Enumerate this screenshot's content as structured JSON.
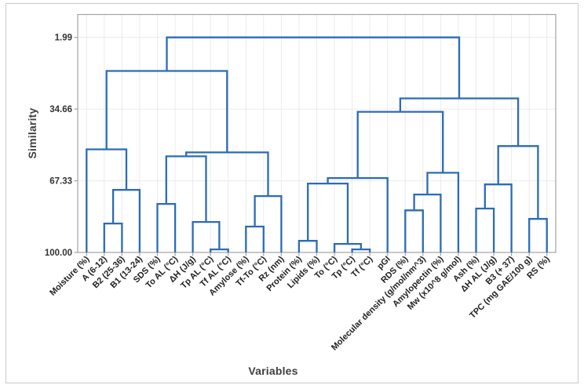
{
  "figure": {
    "background": "#ffffff",
    "border_color": "#c9c9c9"
  },
  "chart_data": {
    "type": "dendrogram",
    "title": "",
    "xlabel": "Variables",
    "ylabel": "Similarity",
    "grid": true,
    "line_color": "#2b6cb6",
    "frame_color": "#a3a3a3",
    "gridline_color": "#ebebeb",
    "tick_label_color": "#333333",
    "leaf_label_color": "#1f1f1f",
    "y_axis_inverted_note": "top of axis is lowest similarity",
    "y_range": [
      1.99,
      100.0
    ],
    "y_ticks": [
      "1.99",
      "34.66",
      "67.33",
      "100.00"
    ],
    "leaves": [
      "Moisture (%)",
      "A (6-12)",
      "B2 (25-36)",
      "B1 (13-24)",
      "SDS (%)",
      "To AL (°C)",
      "ΔH (J/g)",
      "Tp AL (°C)",
      "Tf AL (°C)",
      "Amylose (%)",
      "Tf-To (°C)",
      "Rz (nm)",
      "Protein (%)",
      "Lipids (%)",
      "To (°C)",
      "Tp (°C)",
      "Tf (°C)",
      "pGI",
      "RDS (%)",
      "Molecular density (g/mol/nm^3)",
      "Amylopectin (%)",
      "Mw (x10^8 g/mol)",
      "Ash (%)",
      "ΔH AL (J/g)",
      "B3 (+ 37)",
      "TPC  (mg GAE/100 g)",
      "RS (%)"
    ],
    "merge_encoding": "each merge is [childA, childB, similarity]; child ids 0-26 are leaves, ids 27+k refer to merge k",
    "merges": [
      [
        7,
        8,
        98.6
      ],
      [
        15,
        16,
        98.6
      ],
      [
        14,
        28,
        96.1
      ],
      [
        12,
        13,
        94.7
      ],
      [
        9,
        10,
        88.2
      ],
      [
        1,
        2,
        86.8
      ],
      [
        6,
        27,
        86.1
      ],
      [
        25,
        26,
        84.7
      ],
      [
        18,
        19,
        80.8
      ],
      [
        22,
        23,
        80.0
      ],
      [
        4,
        5,
        77.9
      ],
      [
        31,
        11,
        74.3
      ],
      [
        35,
        20,
        73.6
      ],
      [
        32,
        3,
        71.5
      ],
      [
        36,
        24,
        69.0
      ],
      [
        30,
        29,
        68.6
      ],
      [
        42,
        17,
        66.1
      ],
      [
        39,
        21,
        63.7
      ],
      [
        37,
        33,
        56.2
      ],
      [
        45,
        38,
        54.4
      ],
      [
        0,
        40,
        53.0
      ],
      [
        41,
        34,
        51.5
      ],
      [
        43,
        44,
        35.9
      ],
      [
        49,
        48,
        29.8
      ],
      [
        47,
        46,
        17.3
      ],
      [
        51,
        50,
        1.99
      ]
    ]
  }
}
